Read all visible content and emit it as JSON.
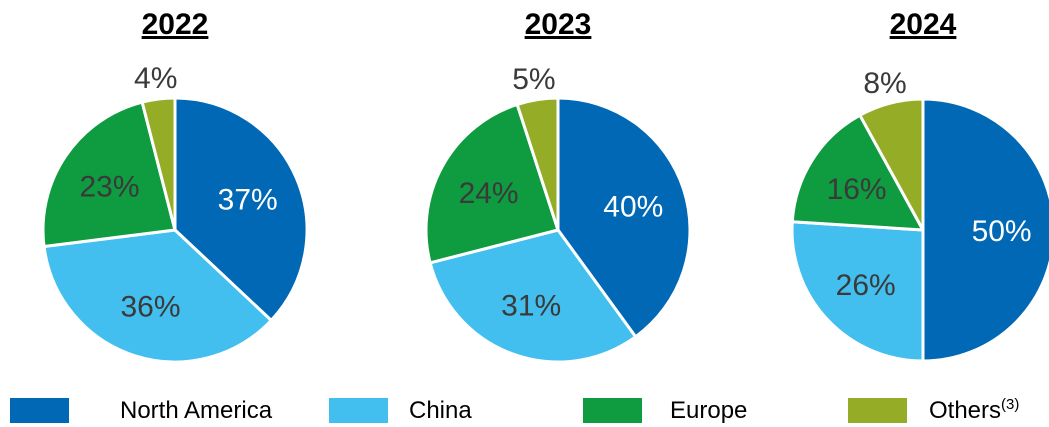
{
  "chart_data": {
    "type": "pie",
    "series_names": [
      "North America",
      "China",
      "Europe",
      "Others"
    ],
    "colors": [
      "#0068b5",
      "#43bfef",
      "#0f9b3f",
      "#95ad26"
    ],
    "charts": [
      {
        "title": "2022",
        "values": [
          37,
          36,
          23,
          4
        ],
        "labels": [
          "37%",
          "36%",
          "23%",
          "4%"
        ]
      },
      {
        "title": "2023",
        "values": [
          40,
          31,
          24,
          5
        ],
        "labels": [
          "40%",
          "31%",
          "24%",
          "5%"
        ]
      },
      {
        "title": "2024",
        "values": [
          50,
          26,
          16,
          8
        ],
        "labels": [
          "50%",
          "26%",
          "16%",
          "8%"
        ]
      }
    ],
    "legend": [
      {
        "name": "North America",
        "sup": ""
      },
      {
        "name": "China",
        "sup": ""
      },
      {
        "name": "Europe",
        "sup": ""
      },
      {
        "name": "Others",
        "sup": "(3)"
      }
    ],
    "legend_position": "bottom"
  }
}
